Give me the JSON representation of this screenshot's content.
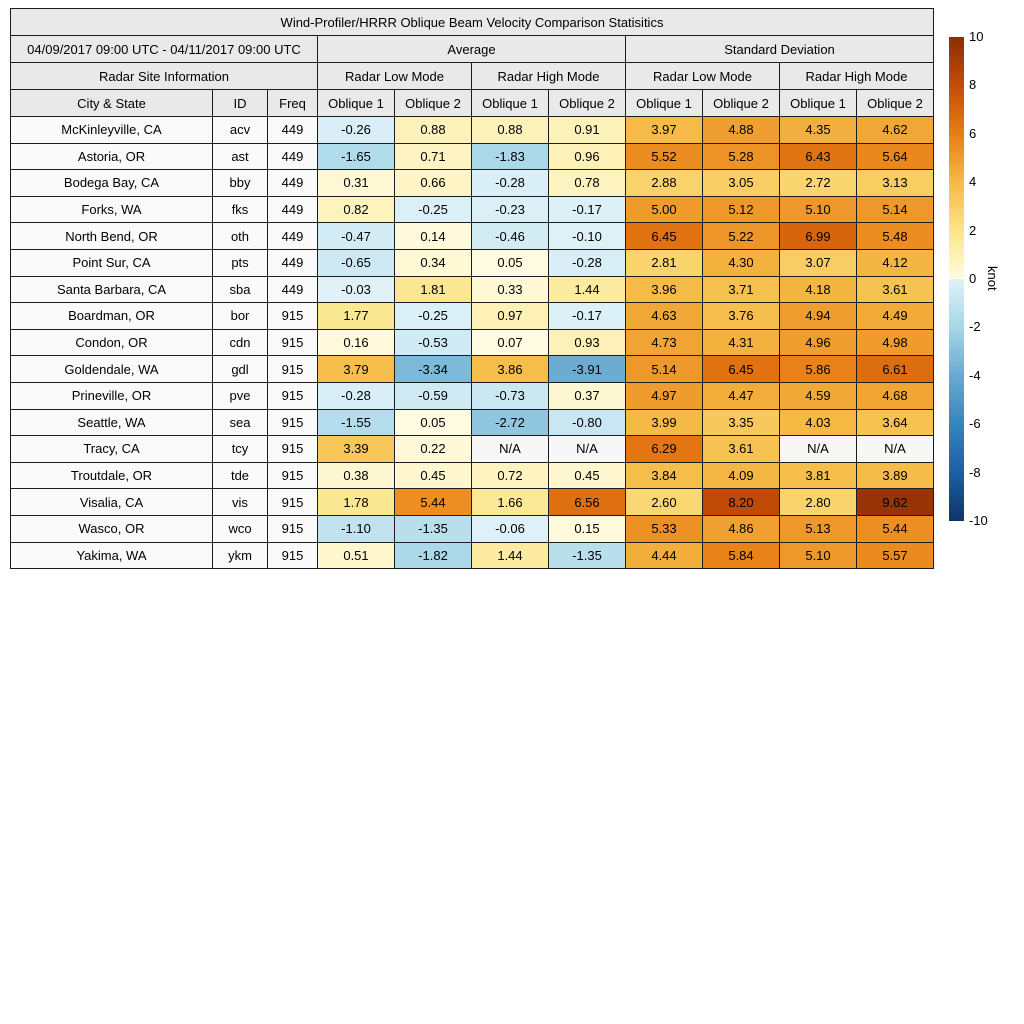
{
  "chart_data": {
    "type": "heatmap",
    "title": "Wind-Profiler/HRRR Oblique Beam Velocity Comparison Statisitics",
    "date_range": "04/09/2017 09:00 UTC - 04/11/2017 09:00 UTC",
    "unit": "knot",
    "labels": {
      "average": "Average",
      "std_dev": "Standard Deviation",
      "site_info": "Radar Site Information",
      "low_mode": "Radar Low Mode",
      "high_mode": "Radar High Mode"
    },
    "columns": [
      "City & State",
      "ID",
      "Freq",
      "Oblique 1",
      "Oblique 2",
      "Oblique 1",
      "Oblique 2",
      "Oblique 1",
      "Oblique 2",
      "Oblique 1",
      "Oblique 2"
    ],
    "colorbar": {
      "min": -10,
      "max": 10,
      "ticks": [
        "10",
        "8",
        "6",
        "4",
        "2",
        "0",
        "-2",
        "-4",
        "-6",
        "-8",
        "-10"
      ],
      "positive_anchors": [
        [
          0,
          "#fffce3"
        ],
        [
          2,
          "#fbe588"
        ],
        [
          4,
          "#f5ba45"
        ],
        [
          6,
          "#e87d15"
        ],
        [
          8,
          "#c44d06"
        ],
        [
          10,
          "#8c2d04"
        ]
      ],
      "negative_anchors": [
        [
          -10,
          "#0f3367"
        ],
        [
          -8,
          "#1d5fa6"
        ],
        [
          -6,
          "#3485bf"
        ],
        [
          -4,
          "#69aad0"
        ],
        [
          -2,
          "#a6d6e8"
        ],
        [
          0,
          "#e1f2f8"
        ]
      ],
      "na_color": "#f7f7f7"
    },
    "rows": [
      {
        "city": "McKinleyville, CA",
        "id": "acv",
        "freq": "449",
        "avg": [
          "-0.26",
          "0.88",
          "0.88",
          "0.91"
        ],
        "std": [
          "3.97",
          "4.88",
          "4.35",
          "4.62"
        ]
      },
      {
        "city": "Astoria, OR",
        "id": "ast",
        "freq": "449",
        "avg": [
          "-1.65",
          "0.71",
          "-1.83",
          "0.96"
        ],
        "std": [
          "5.52",
          "5.28",
          "6.43",
          "5.64"
        ]
      },
      {
        "city": "Bodega Bay, CA",
        "id": "bby",
        "freq": "449",
        "avg": [
          "0.31",
          "0.66",
          "-0.28",
          "0.78"
        ],
        "std": [
          "2.88",
          "3.05",
          "2.72",
          "3.13"
        ]
      },
      {
        "city": "Forks, WA",
        "id": "fks",
        "freq": "449",
        "avg": [
          "0.82",
          "-0.25",
          "-0.23",
          "-0.17"
        ],
        "std": [
          "5.00",
          "5.12",
          "5.10",
          "5.14"
        ]
      },
      {
        "city": "North Bend, OR",
        "id": "oth",
        "freq": "449",
        "avg": [
          "-0.47",
          "0.14",
          "-0.46",
          "-0.10"
        ],
        "std": [
          "6.45",
          "5.22",
          "6.99",
          "5.48"
        ]
      },
      {
        "city": "Point Sur, CA",
        "id": "pts",
        "freq": "449",
        "avg": [
          "-0.65",
          "0.34",
          "0.05",
          "-0.28"
        ],
        "std": [
          "2.81",
          "4.30",
          "3.07",
          "4.12"
        ]
      },
      {
        "city": "Santa Barbara, CA",
        "id": "sba",
        "freq": "449",
        "avg": [
          "-0.03",
          "1.81",
          "0.33",
          "1.44"
        ],
        "std": [
          "3.96",
          "3.71",
          "4.18",
          "3.61"
        ]
      },
      {
        "city": "Boardman, OR",
        "id": "bor",
        "freq": "915",
        "avg": [
          "1.77",
          "-0.25",
          "0.97",
          "-0.17"
        ],
        "std": [
          "4.63",
          "3.76",
          "4.94",
          "4.49"
        ]
      },
      {
        "city": "Condon, OR",
        "id": "cdn",
        "freq": "915",
        "avg": [
          "0.16",
          "-0.53",
          "0.07",
          "0.93"
        ],
        "std": [
          "4.73",
          "4.31",
          "4.96",
          "4.98"
        ]
      },
      {
        "city": "Goldendale, WA",
        "id": "gdl",
        "freq": "915",
        "avg": [
          "3.79",
          "-3.34",
          "3.86",
          "-3.91"
        ],
        "std": [
          "5.14",
          "6.45",
          "5.86",
          "6.61"
        ]
      },
      {
        "city": "Prineville, OR",
        "id": "pve",
        "freq": "915",
        "avg": [
          "-0.28",
          "-0.59",
          "-0.73",
          "0.37"
        ],
        "std": [
          "4.97",
          "4.47",
          "4.59",
          "4.68"
        ]
      },
      {
        "city": "Seattle, WA",
        "id": "sea",
        "freq": "915",
        "avg": [
          "-1.55",
          "0.05",
          "-2.72",
          "-0.80"
        ],
        "std": [
          "3.99",
          "3.35",
          "4.03",
          "3.64"
        ]
      },
      {
        "city": "Tracy, CA",
        "id": "tcy",
        "freq": "915",
        "avg": [
          "3.39",
          "0.22",
          "N/A",
          "N/A"
        ],
        "std": [
          "6.29",
          "3.61",
          "N/A",
          "N/A"
        ]
      },
      {
        "city": "Troutdale, OR",
        "id": "tde",
        "freq": "915",
        "avg": [
          "0.38",
          "0.45",
          "0.72",
          "0.45"
        ],
        "std": [
          "3.84",
          "4.09",
          "3.81",
          "3.89"
        ]
      },
      {
        "city": "Visalia, CA",
        "id": "vis",
        "freq": "915",
        "avg": [
          "1.78",
          "5.44",
          "1.66",
          "6.56"
        ],
        "std": [
          "2.60",
          "8.20",
          "2.80",
          "9.62"
        ]
      },
      {
        "city": "Wasco, OR",
        "id": "wco",
        "freq": "915",
        "avg": [
          "-1.10",
          "-1.35",
          "-0.06",
          "0.15"
        ],
        "std": [
          "5.33",
          "4.86",
          "5.13",
          "5.44"
        ]
      },
      {
        "city": "Yakima, WA",
        "id": "ykm",
        "freq": "915",
        "avg": [
          "0.51",
          "-1.82",
          "1.44",
          "-1.35"
        ],
        "std": [
          "4.44",
          "5.84",
          "5.10",
          "5.57"
        ]
      }
    ]
  }
}
